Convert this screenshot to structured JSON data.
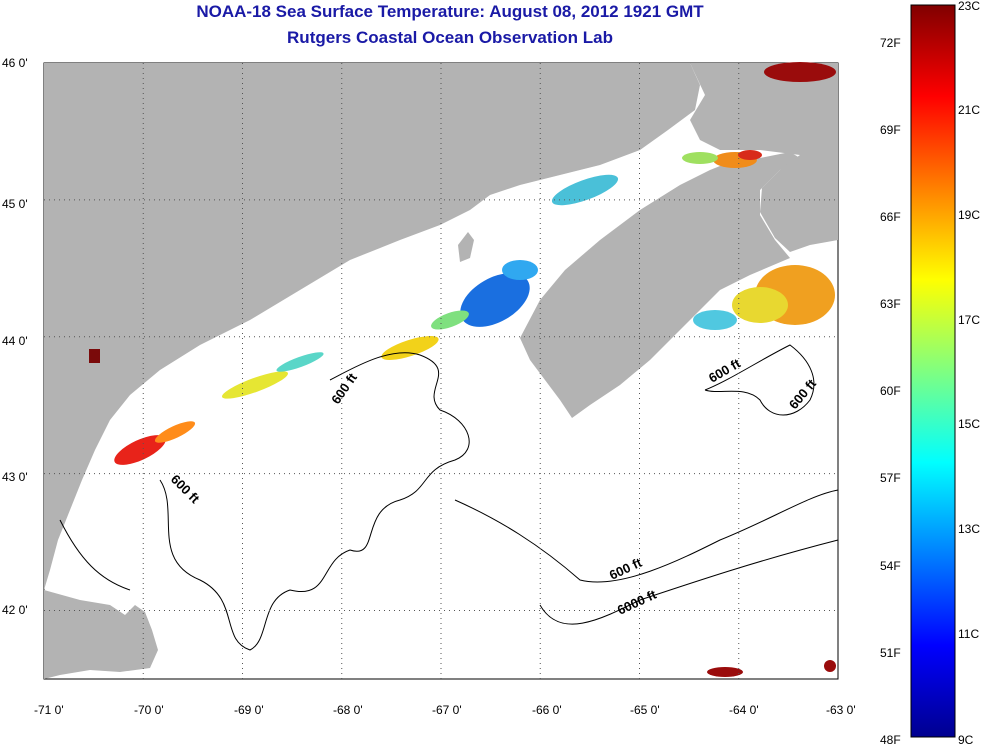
{
  "title": "NOAA-18 Sea Surface Temperature:  August 08, 2012 1921 GMT",
  "subtitle": "Rutgers Coastal Ocean Observation Lab",
  "map": {
    "lat_ticks": [
      "46 0'",
      "45 0'",
      "44 0'",
      "43 0'",
      "42 0'"
    ],
    "lon_ticks": [
      "-71 0'",
      "-70 0'",
      "-69 0'",
      "-68 0'",
      "-67 0'",
      "-66 0'",
      "-65 0'",
      "-64 0'",
      "-63 0'"
    ],
    "lat_range": [
      41.5,
      46.0
    ],
    "lon_range": [
      -71.0,
      -63.0
    ],
    "contour_labels": [
      "600 ft",
      "600 ft",
      "600 ft",
      "600 ft",
      "600 ft",
      "6000 ft"
    ],
    "colors": {
      "land": "#b3b3b3",
      "ocean_cloud": "#ffffff",
      "grid": "#555555"
    }
  },
  "colorbar": {
    "fahrenheit": [
      "72F",
      "69F",
      "66F",
      "63F",
      "60F",
      "57F",
      "54F",
      "51F",
      "48F"
    ],
    "celsius": [
      "23C",
      "21C",
      "19C",
      "17C",
      "15C",
      "13C",
      "11C",
      "9C"
    ],
    "range_c": [
      9,
      23
    ],
    "stops": [
      "#00008f",
      "#0000ff",
      "#0080ff",
      "#00ffff",
      "#80ff80",
      "#ffff00",
      "#ff8000",
      "#ff0000",
      "#800000"
    ]
  }
}
